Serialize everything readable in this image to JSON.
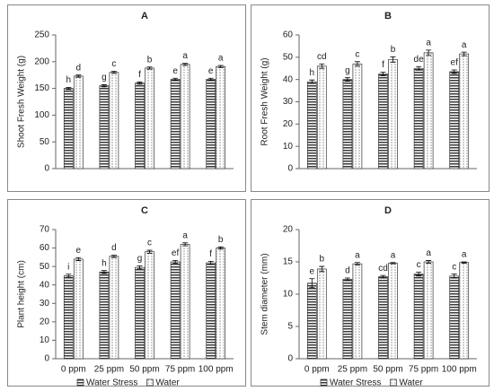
{
  "chart_data": [
    {
      "type": "bar",
      "title": "A",
      "ylabel": "Shoot Fresh Weight (g)",
      "categories": [
        null,
        null,
        null,
        null,
        null
      ],
      "ylim": [
        0,
        250
      ],
      "yticks": [
        0,
        50,
        100,
        150,
        200,
        250
      ],
      "series": [
        {
          "color": "#3a3a3a",
          "pattern": "stripes",
          "values": [
            150,
            155,
            160,
            167,
            167
          ],
          "errors": [
            2,
            2,
            2,
            2,
            2
          ],
          "letters": [
            "h",
            "g",
            "f",
            "e",
            "e"
          ]
        },
        {
          "color": "#555555",
          "pattern": "dots",
          "values": [
            173,
            180,
            188,
            195,
            191
          ],
          "errors": [
            2,
            2,
            2,
            2,
            2
          ],
          "letters": [
            "d",
            "c",
            "b",
            "a",
            "a"
          ]
        }
      ]
    },
    {
      "type": "bar",
      "title": "B",
      "ylabel": "Root Fresh Weight (g)",
      "categories": [
        null,
        null,
        null,
        null,
        null
      ],
      "ylim": [
        0,
        60
      ],
      "yticks": [
        0,
        10,
        20,
        30,
        40,
        50,
        60
      ],
      "series": [
        {
          "color": "#3a3a3a",
          "pattern": "stripes",
          "values": [
            39,
            40,
            42.5,
            45,
            43.5
          ],
          "errors": [
            0.8,
            0.8,
            0.8,
            0.8,
            0.8
          ],
          "letters": [
            "h",
            "g",
            "f",
            "de",
            "ef"
          ]
        },
        {
          "color": "#555555",
          "pattern": "dots",
          "values": [
            46,
            47,
            49,
            52,
            51.5
          ],
          "errors": [
            1,
            1,
            1.2,
            1.2,
            0.8
          ],
          "letters": [
            "cd",
            "c",
            "b",
            "a",
            "a"
          ]
        }
      ]
    },
    {
      "type": "bar",
      "title": "C",
      "ylabel": "Plant height (cm)",
      "categories": [
        "0 ppm",
        "25 ppm",
        "50 ppm",
        "75 ppm",
        "100 ppm"
      ],
      "ylim": [
        0,
        70
      ],
      "yticks": [
        0,
        10,
        20,
        30,
        40,
        50,
        60,
        70
      ],
      "legend": "bottom",
      "series": [
        {
          "name": "Water Stress",
          "color": "#3a3a3a",
          "pattern": "stripes",
          "values": [
            45,
            47,
            49.5,
            52.5,
            52
          ],
          "errors": [
            0.8,
            0.8,
            0.8,
            0.8,
            0.8
          ],
          "letters": [
            "i",
            "h",
            "g",
            "ef",
            "f"
          ]
        },
        {
          "name": "Water",
          "color": "#555555",
          "pattern": "dots",
          "values": [
            54,
            55.5,
            58,
            62,
            60
          ],
          "errors": [
            0.8,
            0.6,
            0.8,
            0.8,
            0.6
          ],
          "letters": [
            "e",
            "d",
            "c",
            "a",
            "b"
          ]
        }
      ]
    },
    {
      "type": "bar",
      "title": "D",
      "ylabel": "Stem diameter (mm)",
      "categories": [
        "0 ppm",
        "25 ppm",
        "50 ppm",
        "75 ppm",
        "100 ppm"
      ],
      "ylim": [
        0,
        20
      ],
      "yticks": [
        0,
        5,
        10,
        15,
        20
      ],
      "legend": "bottom",
      "series": [
        {
          "name": "Water Stress",
          "color": "#3a3a3a",
          "pattern": "stripes",
          "values": [
            11.7,
            12.3,
            12.7,
            13.1,
            12.8
          ],
          "errors": [
            0.7,
            0.2,
            0.2,
            0.3,
            0.3
          ],
          "letters": [
            "e",
            "d",
            "cd",
            "c",
            "c"
          ]
        },
        {
          "name": "Water",
          "color": "#555555",
          "pattern": "dots",
          "values": [
            13.9,
            14.7,
            14.8,
            15.0,
            14.9
          ],
          "errors": [
            0.4,
            0.2,
            0.1,
            0.2,
            0.1
          ],
          "letters": [
            "b",
            "a",
            "a",
            "a",
            "a"
          ]
        }
      ]
    }
  ]
}
